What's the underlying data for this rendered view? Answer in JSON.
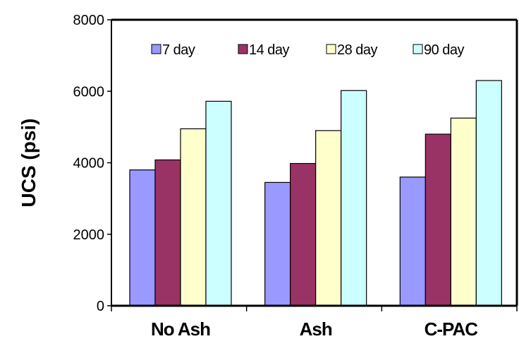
{
  "chart_data": {
    "type": "bar",
    "title": "",
    "xlabel": "",
    "ylabel": "UCS (psi)",
    "ylim": [
      0,
      8000
    ],
    "yticks": [
      0,
      2000,
      4000,
      6000,
      8000
    ],
    "grid": false,
    "legend_position": "top",
    "categories": [
      "No Ash",
      "Ash",
      "C-PAC"
    ],
    "series": [
      {
        "name": "7 day",
        "color": "#9999ff",
        "values": [
          3800,
          3450,
          3600
        ]
      },
      {
        "name": "14 day",
        "color": "#993366",
        "values": [
          4080,
          3980,
          4800
        ]
      },
      {
        "name": "28 day",
        "color": "#ffffcc",
        "values": [
          4950,
          4900,
          5250
        ]
      },
      {
        "name": "90 day",
        "color": "#ccffff",
        "values": [
          5720,
          6020,
          6300
        ]
      }
    ]
  }
}
